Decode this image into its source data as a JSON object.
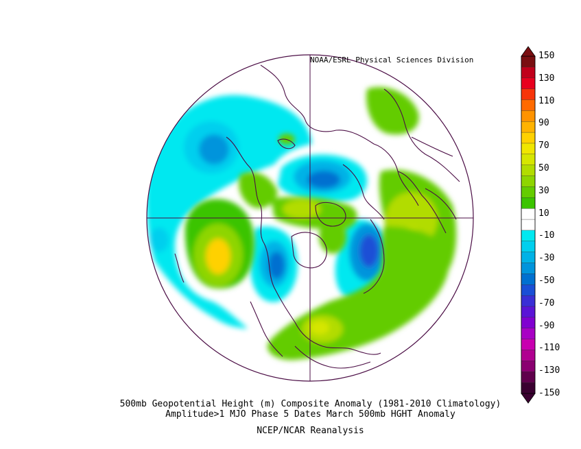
{
  "credit": "NOAA/ESRL Physical Sciences Division",
  "caption": {
    "line1": "500mb Geopotential Height (m) Composite Anomaly (1981-2010 Climatology)",
    "line2": "Amplitude>1 MJO Phase 5 Dates March 500mb HGHT Anomaly",
    "line3": "NCEP/NCAR Reanalysis"
  },
  "colorbar": {
    "labels": [
      "150",
      "130",
      "110",
      "90",
      "70",
      "50",
      "30",
      "10",
      "-10",
      "-30",
      "-50",
      "-70",
      "-90",
      "-110",
      "-130",
      "-150"
    ],
    "colors": [
      "#7a0f12",
      "#c0001b",
      "#e8001e",
      "#f7340a",
      "#ff6a00",
      "#ff9300",
      "#ffb300",
      "#ffd100",
      "#f0e600",
      "#d6e600",
      "#b2dc00",
      "#8ed500",
      "#64cc00",
      "#3bc400",
      "#ffffff",
      "#ffffff",
      "#00e8f0",
      "#00cfee",
      "#00b2e6",
      "#0094dc",
      "#0070d0",
      "#1a4fd6",
      "#3a2fd6",
      "#5a14d6",
      "#8000d0",
      "#a800c4",
      "#c800b0",
      "#b00090",
      "#8a0070",
      "#60004c",
      "#3a0030"
    ]
  },
  "map": {
    "projection": "north-polar-stereographic",
    "background": "#ffffff",
    "coast_color": "#4a0c44"
  }
}
